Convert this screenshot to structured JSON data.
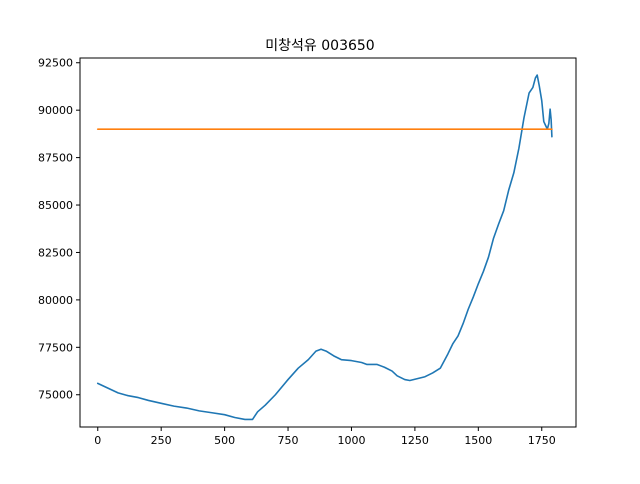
{
  "chart_data": {
    "type": "line",
    "title": "미창석유 003650",
    "xlabel": "",
    "ylabel": "",
    "xlim": [
      -70,
      1885
    ],
    "ylim": [
      73300,
      92750
    ],
    "grid": false,
    "legend": "none",
    "x_ticks": [
      0,
      250,
      500,
      750,
      1000,
      1250,
      1500,
      1750
    ],
    "x_tick_labels": [
      "0",
      "250",
      "500",
      "750",
      "1000",
      "1250",
      "1500",
      "1750"
    ],
    "y_ticks": [
      75000,
      77500,
      80000,
      82500,
      85000,
      87500,
      90000,
      92500
    ],
    "y_tick_labels": [
      "75000",
      "77500",
      "80000",
      "82500",
      "85000",
      "87500",
      "90000",
      "92500"
    ],
    "series": [
      {
        "color": "#1f77b4",
        "points": [
          [
            0,
            75600
          ],
          [
            40,
            75350
          ],
          [
            80,
            75100
          ],
          [
            120,
            74950
          ],
          [
            160,
            74850
          ],
          [
            200,
            74700
          ],
          [
            250,
            74550
          ],
          [
            300,
            74400
          ],
          [
            350,
            74300
          ],
          [
            400,
            74150
          ],
          [
            450,
            74050
          ],
          [
            500,
            73950
          ],
          [
            540,
            73800
          ],
          [
            580,
            73700
          ],
          [
            610,
            73700
          ],
          [
            630,
            74100
          ],
          [
            660,
            74450
          ],
          [
            700,
            75000
          ],
          [
            750,
            75800
          ],
          [
            790,
            76400
          ],
          [
            830,
            76850
          ],
          [
            860,
            77300
          ],
          [
            880,
            77400
          ],
          [
            900,
            77300
          ],
          [
            930,
            77050
          ],
          [
            960,
            76850
          ],
          [
            1000,
            76800
          ],
          [
            1040,
            76700
          ],
          [
            1060,
            76600
          ],
          [
            1080,
            76600
          ],
          [
            1100,
            76600
          ],
          [
            1130,
            76450
          ],
          [
            1160,
            76250
          ],
          [
            1180,
            76000
          ],
          [
            1210,
            75800
          ],
          [
            1230,
            75750
          ],
          [
            1260,
            75850
          ],
          [
            1290,
            75950
          ],
          [
            1320,
            76150
          ],
          [
            1350,
            76400
          ],
          [
            1380,
            77150
          ],
          [
            1400,
            77700
          ],
          [
            1420,
            78100
          ],
          [
            1440,
            78750
          ],
          [
            1460,
            79500
          ],
          [
            1480,
            80150
          ],
          [
            1500,
            80850
          ],
          [
            1520,
            81500
          ],
          [
            1540,
            82250
          ],
          [
            1560,
            83250
          ],
          [
            1580,
            84000
          ],
          [
            1600,
            84700
          ],
          [
            1620,
            85800
          ],
          [
            1640,
            86700
          ],
          [
            1660,
            88000
          ],
          [
            1680,
            89600
          ],
          [
            1700,
            90900
          ],
          [
            1715,
            91200
          ],
          [
            1725,
            91700
          ],
          [
            1732,
            91850
          ],
          [
            1740,
            91300
          ],
          [
            1750,
            90500
          ],
          [
            1758,
            89400
          ],
          [
            1765,
            89200
          ],
          [
            1772,
            89000
          ],
          [
            1778,
            89300
          ],
          [
            1783,
            90050
          ],
          [
            1787,
            89500
          ],
          [
            1790,
            88600
          ]
        ]
      },
      {
        "color": "#ff7f0e",
        "points": [
          [
            0,
            89000
          ],
          [
            1790,
            89000
          ]
        ]
      }
    ]
  }
}
